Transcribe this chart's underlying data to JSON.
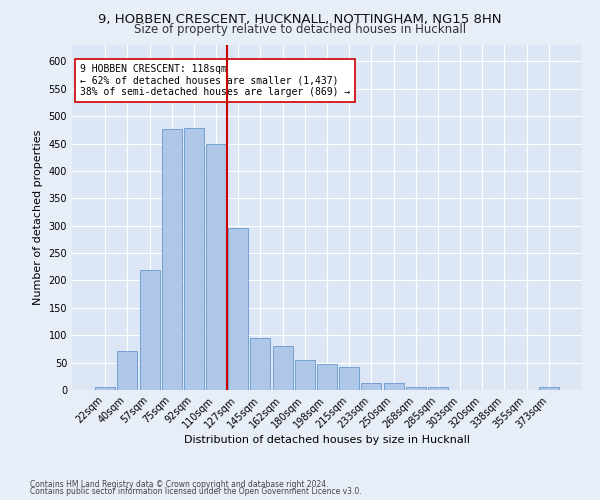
{
  "title1": "9, HOBBEN CRESCENT, HUCKNALL, NOTTINGHAM, NG15 8HN",
  "title2": "Size of property relative to detached houses in Hucknall",
  "xlabel": "Distribution of detached houses by size in Hucknall",
  "ylabel": "Number of detached properties",
  "categories": [
    "22sqm",
    "40sqm",
    "57sqm",
    "75sqm",
    "92sqm",
    "110sqm",
    "127sqm",
    "145sqm",
    "162sqm",
    "180sqm",
    "198sqm",
    "215sqm",
    "233sqm",
    "250sqm",
    "268sqm",
    "285sqm",
    "303sqm",
    "320sqm",
    "338sqm",
    "355sqm",
    "373sqm"
  ],
  "values": [
    5,
    72,
    220,
    476,
    478,
    450,
    295,
    95,
    80,
    55,
    47,
    42,
    13,
    12,
    5,
    5,
    0,
    0,
    0,
    0,
    5
  ],
  "bar_color": "#aec6e8",
  "bar_edge_color": "#6699cc",
  "vline_color": "#cc0000",
  "vline_pos": 5.5,
  "annotation_text": "9 HOBBEN CRESCENT: 118sqm\n← 62% of detached houses are smaller (1,437)\n38% of semi-detached houses are larger (869) →",
  "annotation_box_color": "#ffffff",
  "annotation_box_edge": "#cc0000",
  "ylim_max": 630,
  "yticks": [
    0,
    50,
    100,
    150,
    200,
    250,
    300,
    350,
    400,
    450,
    500,
    550,
    600
  ],
  "plot_bg_color": "#dce6f5",
  "fig_bg_color": "#e8eef7",
  "grid_color": "#ffffff",
  "footer1": "Contains HM Land Registry data © Crown copyright and database right 2024.",
  "footer2": "Contains public sector information licensed under the Open Government Licence v3.0.",
  "title1_fontsize": 9.5,
  "title2_fontsize": 8.5,
  "xlabel_fontsize": 8,
  "ylabel_fontsize": 8,
  "tick_fontsize": 7,
  "annot_fontsize": 7,
  "footer_fontsize": 5.5
}
